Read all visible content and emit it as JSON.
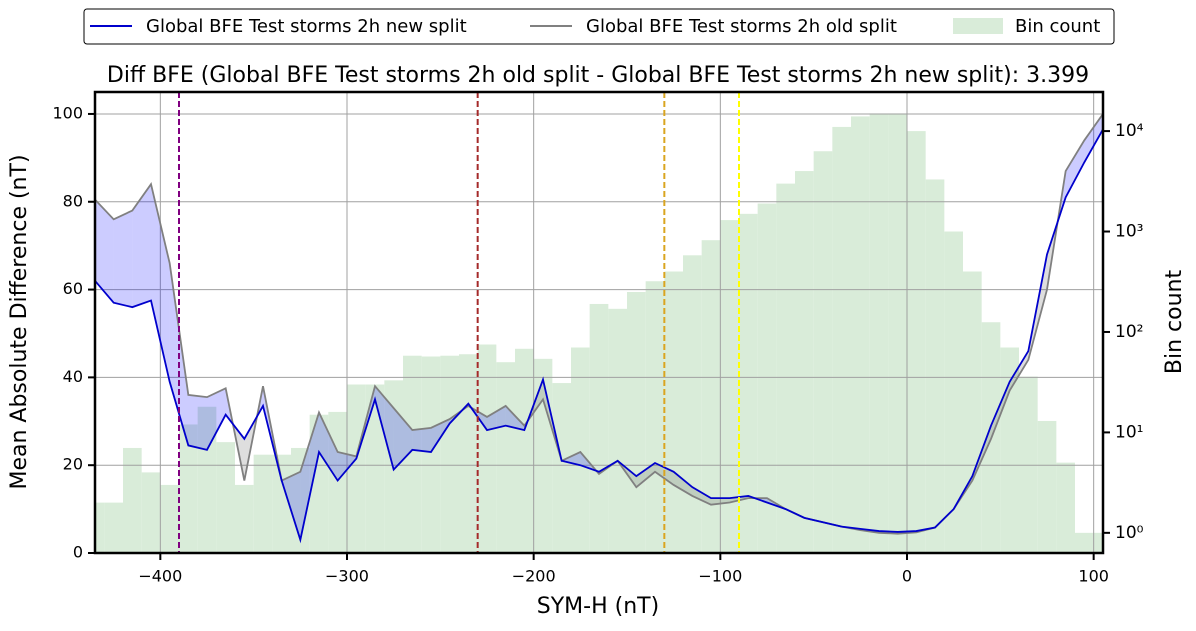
{
  "chart_data": {
    "type": "line",
    "title": "Diff BFE (Global BFE Test storms 2h old split - Global BFE Test storms 2h new split): 3.399",
    "xlabel": "SYM-H (nT)",
    "ylabel": "Mean Absolute Difference (nT)",
    "y2label": "Bin count",
    "legend": "top",
    "grid": true,
    "xlim": [
      -435,
      105
    ],
    "ylim": [
      0,
      105
    ],
    "y2lim": [
      0.63,
      24500
    ],
    "y2scale": "log",
    "xticks": [
      {
        "value": -400,
        "label": "−400"
      },
      {
        "value": -300,
        "label": "−300"
      },
      {
        "value": -200,
        "label": "−200"
      },
      {
        "value": -100,
        "label": "−100"
      },
      0,
      100
    ],
    "yticks": [
      0,
      20,
      40,
      60,
      80,
      100
    ],
    "y2ticks": [
      {
        "value": 1,
        "label": "10⁰"
      },
      {
        "value": 10,
        "label": "10¹"
      },
      {
        "value": 100,
        "label": "10²"
      },
      {
        "value": 1000,
        "label": "10³"
      },
      {
        "value": 10000,
        "label": "10⁴"
      }
    ],
    "x": [
      -435,
      -425,
      -415,
      -405,
      -395,
      -385,
      -375,
      -365,
      -355,
      -345,
      -335,
      -325,
      -315,
      -305,
      -295,
      -285,
      -275,
      -265,
      -255,
      -245,
      -235,
      -225,
      -215,
      -205,
      -195,
      -185,
      -175,
      -165,
      -155,
      -145,
      -135,
      -125,
      -115,
      -105,
      -95,
      -85,
      -75,
      -65,
      -55,
      -45,
      -35,
      -25,
      -15,
      -5,
      5,
      15,
      25,
      35,
      45,
      55,
      65,
      75,
      85,
      95,
      105
    ],
    "series": [
      {
        "name": "Global BFE Test storms 2h new split",
        "color": "#0000cc",
        "values": [
          62,
          57,
          56,
          57.5,
          39,
          24.5,
          23.5,
          31.5,
          26,
          33.5,
          16.5,
          3,
          23,
          16.5,
          21.5,
          35,
          19,
          23.5,
          23,
          29.5,
          34,
          28,
          29,
          28,
          39.5,
          21,
          20,
          18.5,
          21,
          17.5,
          20.5,
          18.5,
          15,
          12.5,
          12.5,
          13,
          11.5,
          10,
          8,
          7,
          6,
          5.5,
          5,
          4.8,
          5,
          5.8,
          10,
          17.5,
          29,
          39,
          46,
          68,
          81,
          89,
          96.5
        ]
      },
      {
        "name": "Global BFE Test storms 2h old split",
        "color": "#808080",
        "values": [
          80.5,
          76,
          78,
          84,
          66,
          36,
          35.5,
          37.5,
          16.5,
          38,
          16.5,
          18.5,
          32,
          23,
          22,
          38,
          33,
          28,
          28.5,
          30.5,
          33.5,
          31,
          33.5,
          29,
          35,
          21,
          23,
          18,
          21,
          15,
          18.5,
          15.5,
          13,
          11,
          11.5,
          12.5,
          12.5,
          10,
          8,
          7,
          6,
          5.2,
          4.6,
          4.4,
          4.7,
          5.8,
          10,
          16.5,
          26,
          37,
          44,
          60,
          87,
          94,
          100
        ]
      }
    ],
    "fill_between": {
      "above_color": "rgba(0,0,255,0.2)",
      "below_color": "rgba(90,90,90,0.2)"
    },
    "histogram": {
      "name": "Bin count",
      "color": "#d9ecd9",
      "axis": "y2",
      "bins": [
        -440,
        -430,
        -420,
        -410,
        -400,
        -390,
        -380,
        -370,
        -360,
        -350,
        -340,
        -330,
        -320,
        -310,
        -300,
        -290,
        -280,
        -270,
        -260,
        -250,
        -240,
        -230,
        -220,
        -210,
        -200,
        -190,
        -180,
        -170,
        -160,
        -150,
        -140,
        -130,
        -120,
        -110,
        -100,
        -90,
        -80,
        -70,
        -60,
        -50,
        -40,
        -30,
        -20,
        -10,
        0,
        10,
        20,
        30,
        40,
        50,
        60,
        70,
        80,
        90,
        100,
        110
      ],
      "counts": [
        2,
        2,
        7,
        4,
        3,
        12,
        18,
        8,
        3,
        6,
        6,
        7,
        15,
        16,
        30,
        30,
        33,
        58,
        57,
        58,
        60,
        75,
        50,
        68,
        54,
        31,
        70,
        190,
        170,
        250,
        320,
        400,
        580,
        820,
        1300,
        1500,
        1900,
        3000,
        4000,
        6300,
        11000,
        14000,
        15000,
        15000,
        10000,
        3300,
        1000,
        400,
        125,
        70,
        36,
        13,
        5,
        1,
        1
      ]
    },
    "vlines": [
      {
        "x": -390,
        "color": "purple"
      },
      {
        "x": -230,
        "color": "#a52a2a"
      },
      {
        "x": -130,
        "color": "#daa520"
      },
      {
        "x": -90,
        "color": "#ffff00"
      }
    ]
  }
}
